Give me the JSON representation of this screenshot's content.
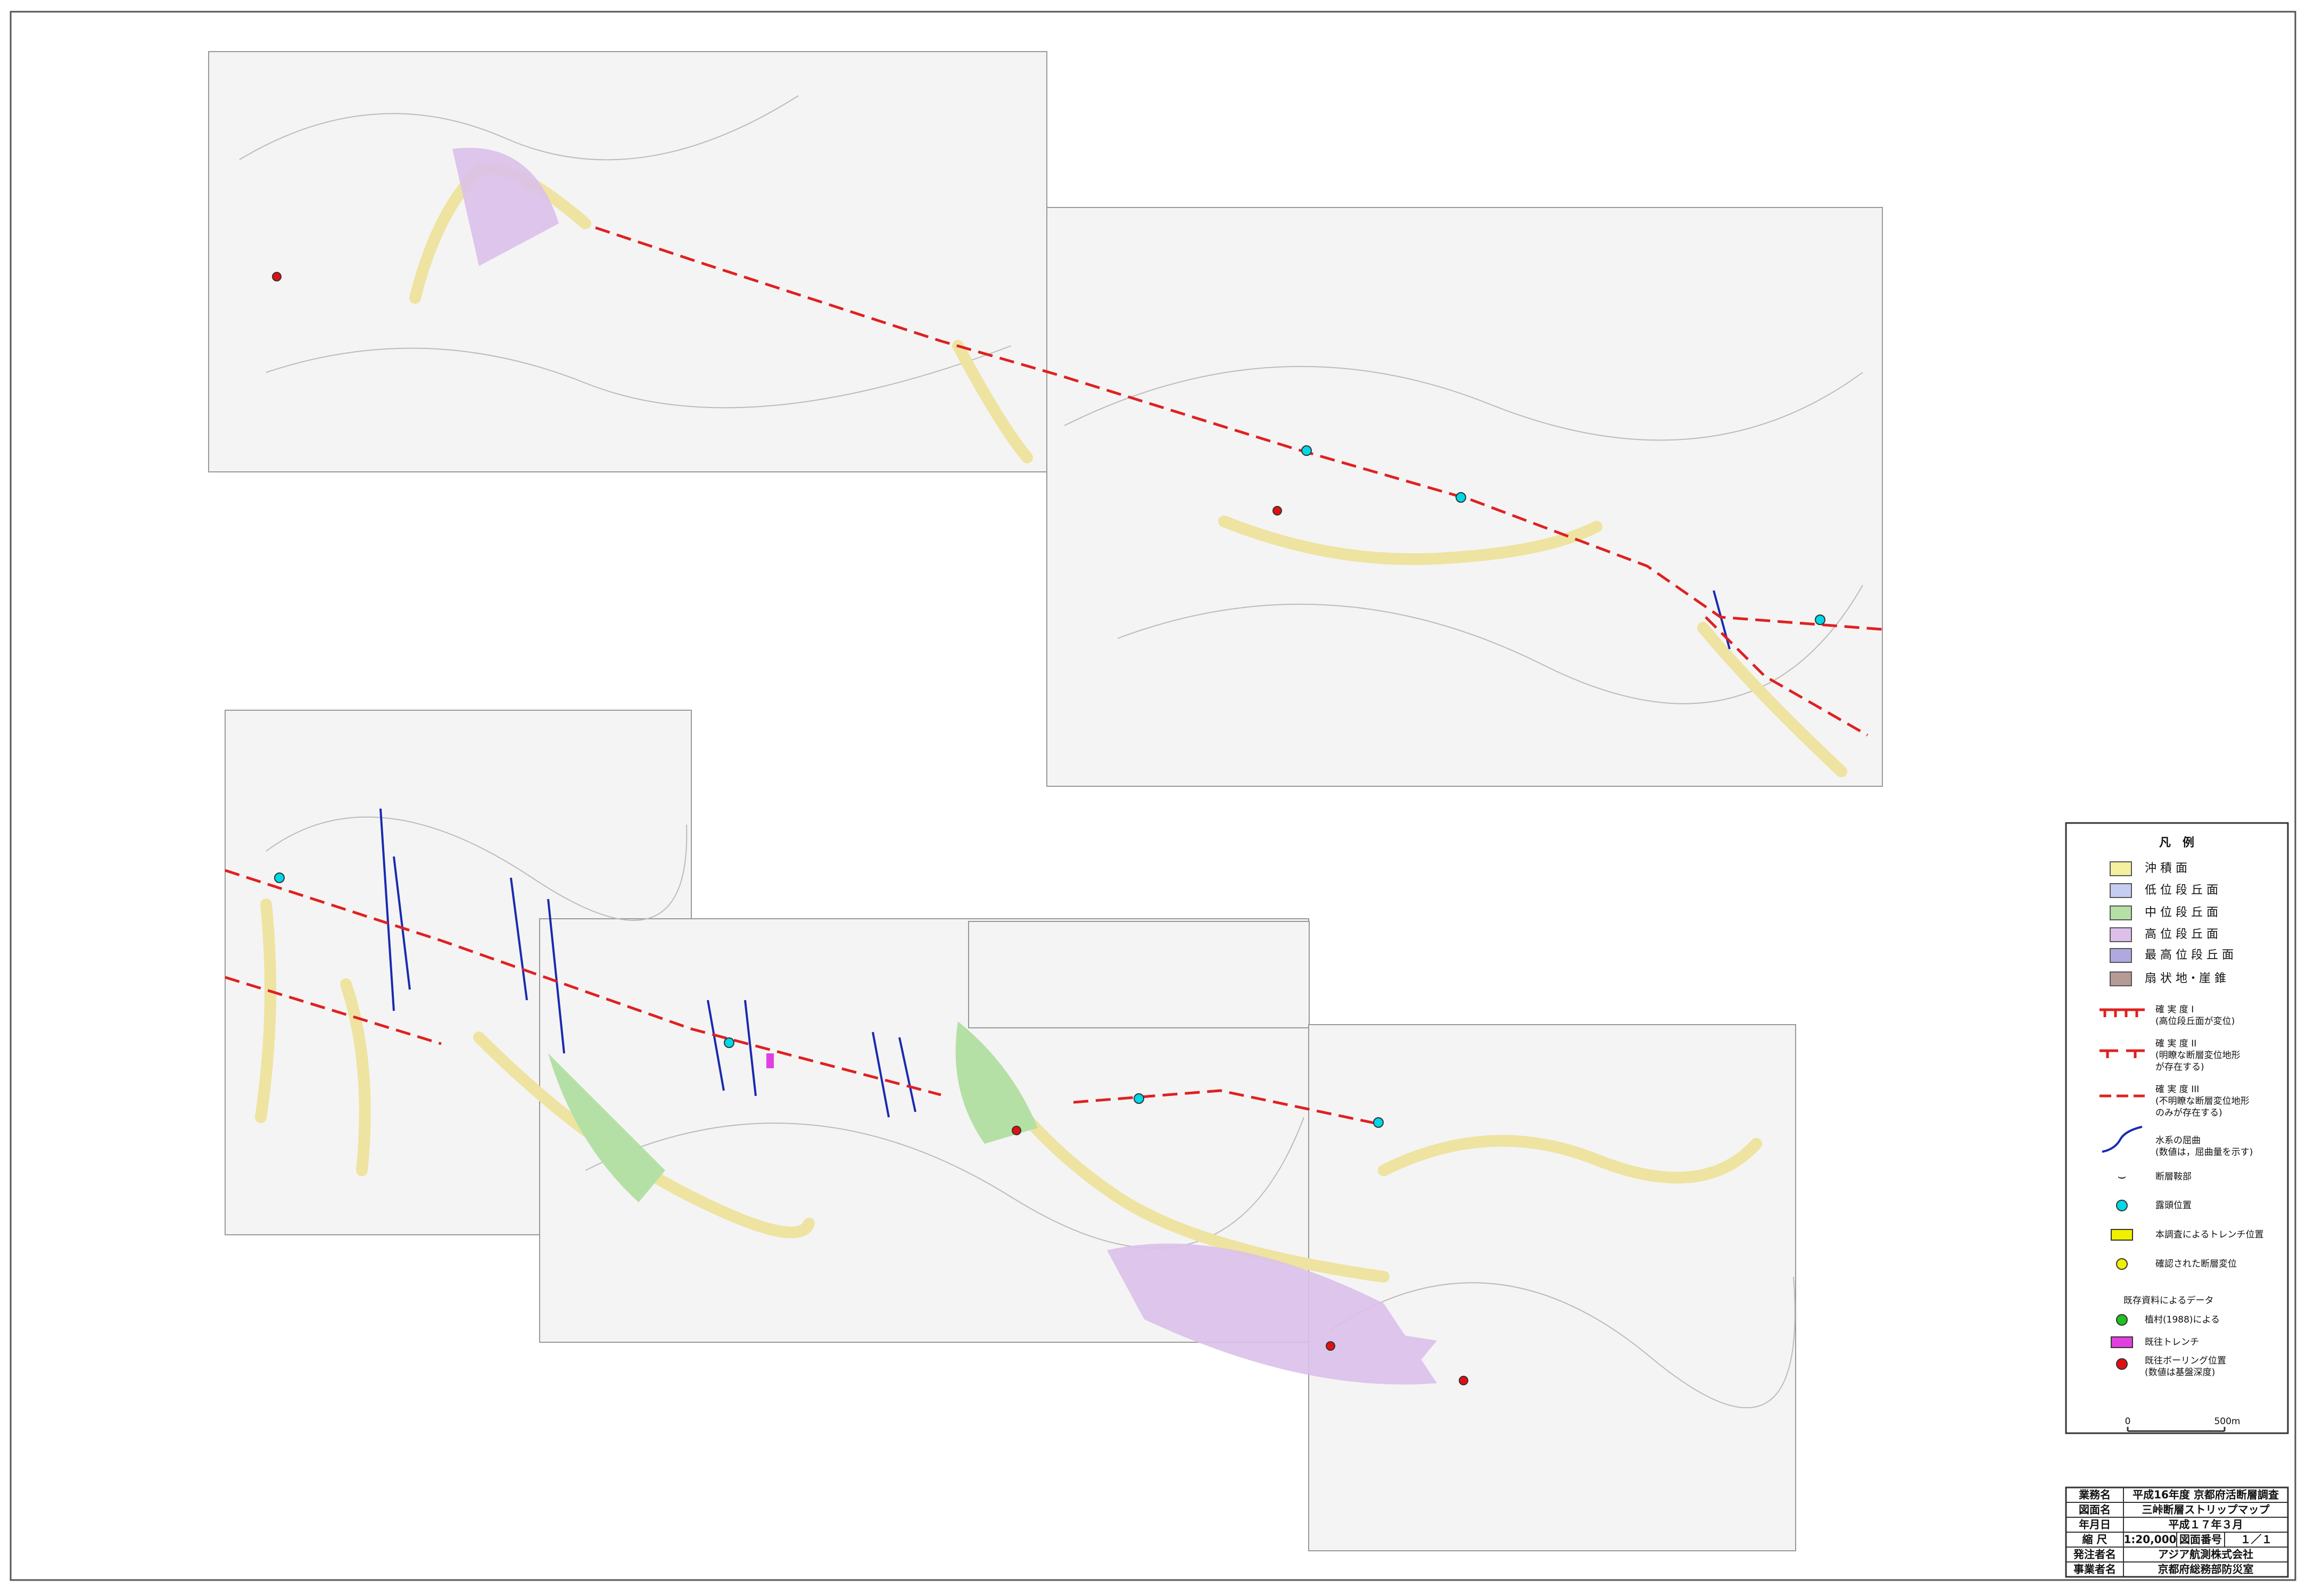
{
  "legend": {
    "title": "凡　例",
    "items": [
      {
        "label": "沖 積 面"
      },
      {
        "label": "低 位 段 丘 面"
      },
      {
        "label": "中 位 段 丘 面"
      },
      {
        "label": "高 位 段 丘 面"
      },
      {
        "label": "最 高 位 段 丘 面"
      },
      {
        "label": "扇 状 地・崖 錐"
      },
      {
        "label": "確 実 度 I",
        "note": "(高位段丘面が変位)"
      },
      {
        "label": "確 実 度 II",
        "note": "(明瞭な断層変位地形",
        "note2": "が存在する)"
      },
      {
        "label": "確 実 度 III",
        "note": "(不明瞭な断層変位地形",
        "note2": "のみが存在する)"
      },
      {
        "label": "水系の屈曲",
        "note": "(数値は，屈曲量を示す)"
      },
      {
        "label": "断層鞍部"
      },
      {
        "label": "露頭位置"
      },
      {
        "label": "本調査によるトレンチ位置"
      },
      {
        "label": "確認された断層変位"
      }
    ],
    "existing": {
      "title": "既存資料によるデータ",
      "items": [
        {
          "label": "植村(1988)による"
        },
        {
          "label": "既往トレンチ"
        },
        {
          "label": "既往ボーリング位置",
          "note": "(数値は基盤深度)"
        }
      ]
    }
  },
  "scale_bar": {
    "start": "0",
    "end": "500m"
  },
  "title_block": {
    "rows": [
      [
        "業務名",
        "平成16年度 京都府活断層調査"
      ],
      [
        "図面名",
        "三峠断層ストリップマップ"
      ],
      [
        "年月日",
        "平成１７年３月"
      ],
      [
        "縮 尺",
        "1:20,000",
        "図面番号",
        "１／１"
      ],
      [
        "発注者名",
        "アジア航測株式会社"
      ],
      [
        "事業者名",
        "京都府総務部防災室"
      ]
    ]
  }
}
